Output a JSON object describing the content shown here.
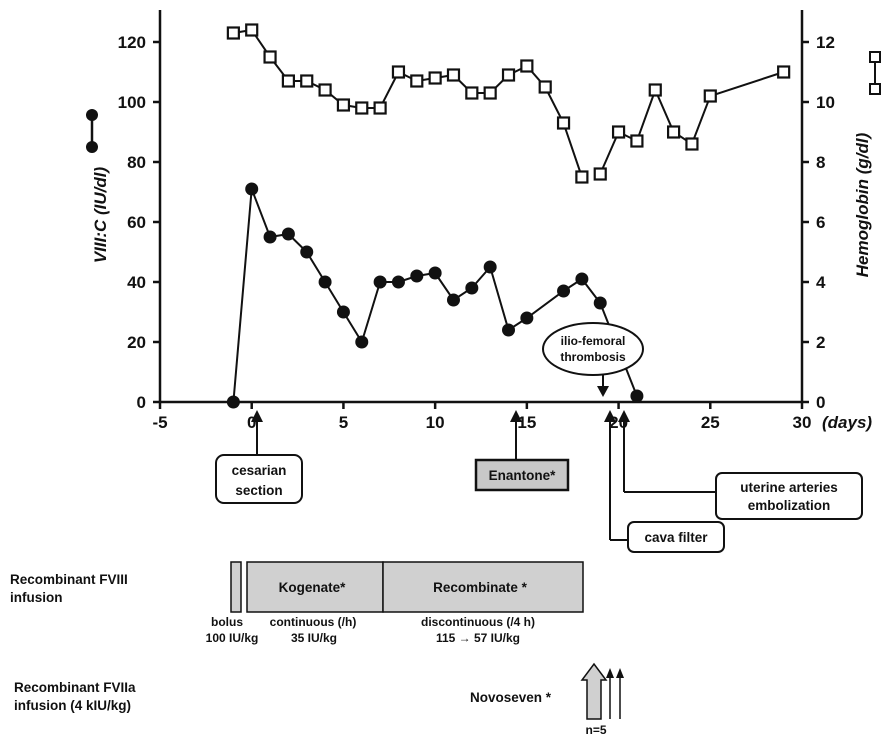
{
  "chart_data": {
    "type": "line",
    "xlabel": "(days)",
    "x_ticks": [
      "-5",
      "0",
      "5",
      "10",
      "15",
      "20",
      "25",
      "30"
    ],
    "xlim": [
      -5,
      30
    ],
    "ylabel_left": "VIII:C (IU/dl)",
    "ylim_left": [
      0,
      120
    ],
    "yticks_left": [
      "0",
      "20",
      "40",
      "60",
      "80",
      "100",
      "120"
    ],
    "ylabel_right": "Hemoglobin (g/dl)",
    "ylim_right": [
      0,
      12
    ],
    "yticks_right": [
      "0",
      "2",
      "4",
      "6",
      "8",
      "10",
      "12"
    ],
    "series": [
      {
        "marker": "filled-circle",
        "axis": "left",
        "color": "#111111",
        "x": [
          -1,
          0,
          1,
          2,
          3,
          4,
          5,
          6,
          7,
          8,
          9,
          10,
          11,
          12,
          13,
          14,
          15,
          17,
          18,
          19,
          21
        ],
        "y": [
          0,
          71,
          55,
          56,
          50,
          40,
          30,
          20,
          40,
          40,
          42,
          43,
          34,
          38,
          45,
          24,
          28,
          37,
          41,
          33,
          2
        ],
        "segments": [
          [
            0,
            18
          ],
          [
            18,
            19
          ],
          [
            19,
            20
          ]
        ]
      },
      {
        "marker": "open-square",
        "axis": "right",
        "color": "#111111",
        "x": [
          -1,
          0,
          1,
          2,
          3,
          4,
          5,
          6,
          7,
          8,
          9,
          10,
          11,
          12,
          13,
          14,
          15,
          16,
          17,
          18,
          19,
          20,
          21,
          22,
          23,
          24,
          25,
          29
        ],
        "y": [
          12.3,
          12.4,
          11.5,
          10.7,
          10.7,
          10.4,
          9.9,
          9.8,
          9.8,
          11.0,
          10.7,
          10.8,
          10.9,
          10.3,
          10.3,
          10.9,
          11.2,
          10.5,
          9.3,
          7.5,
          7.6,
          9.0,
          8.7,
          10.4,
          9.0,
          8.6,
          10.2,
          11.0
        ],
        "segments": [
          [
            0,
            19
          ],
          [
            20,
            27
          ]
        ]
      }
    ]
  },
  "annotations": {
    "cesarian": [
      "cesarian",
      "section"
    ],
    "enantone": "Enantone*",
    "thrombosis": [
      "ilio-femoral",
      "thrombosis"
    ],
    "uterine": [
      "uterine arteries",
      "embolization"
    ],
    "cava": "cava filter"
  },
  "fviii": {
    "label": [
      "Recombinant FVIII",
      "infusion"
    ],
    "kogenate": "Kogenate*",
    "recombinate": "Recombinate *",
    "bolus": "bolus",
    "bolus_dose": "100 IU/kg",
    "continuous": "continuous (/h)",
    "continuous_dose": "35 IU/kg",
    "discontinuous": "discontinuous (/4 h)",
    "discontinuous_dose": "115 → 57 IU/kg"
  },
  "fviia": {
    "label": [
      "Recombinant FVIIa",
      "infusion (4 kIU/kg)"
    ],
    "novoseven": "Novoseven *",
    "count": "n=5"
  }
}
